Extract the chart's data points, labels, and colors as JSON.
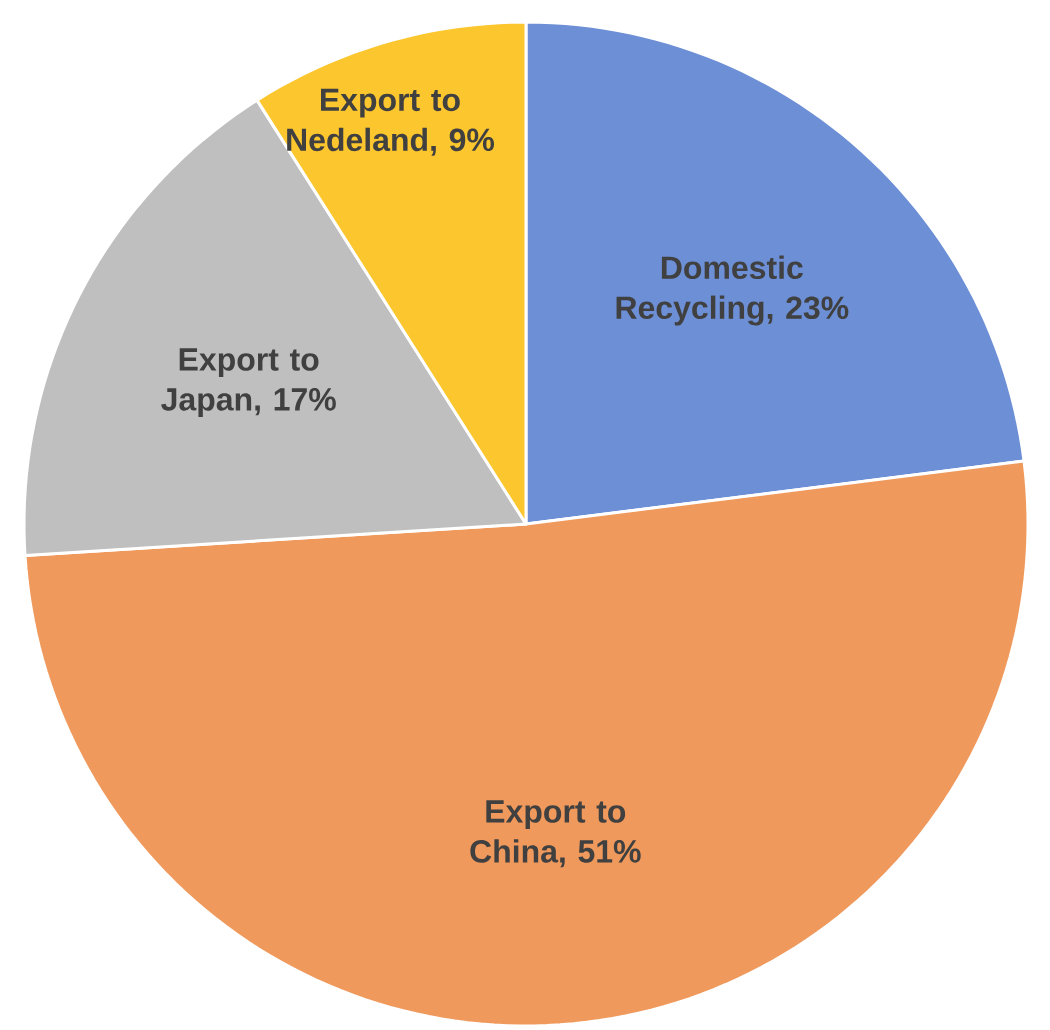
{
  "chart_data": {
    "type": "pie",
    "categories": [
      "Domestic Recycling",
      "Export to China",
      "Export to Japan",
      "Export to Nedeland"
    ],
    "values": [
      23,
      51,
      17,
      9
    ],
    "value_labels": [
      ", 23%",
      ", 51%",
      ", 17%",
      ", 9%"
    ],
    "colors": [
      "#6d8fd6",
      "#f0995c",
      "#bfbfbf",
      "#fcc62e"
    ]
  }
}
